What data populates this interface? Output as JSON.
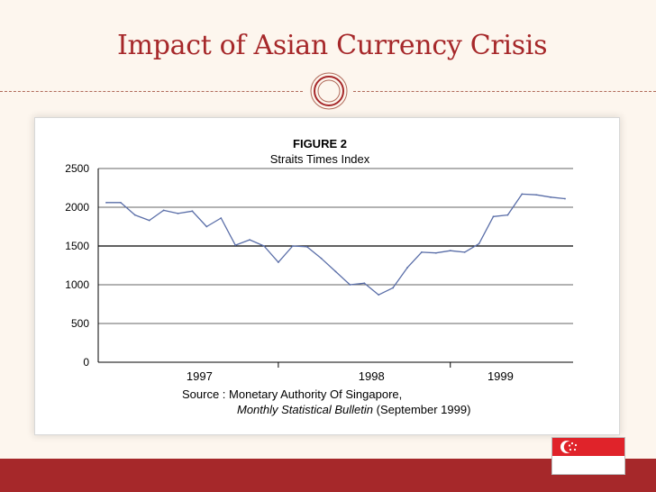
{
  "slide": {
    "title": "Impact of Asian Currency Crisis"
  },
  "figure": {
    "source_prefix": "Source : Monetary Authority Of Singapore,",
    "source_publication": "Monthly Statistical Bulletin",
    "source_suffix": "(September 1999)"
  },
  "colors": {
    "title": "#a6282a",
    "footer": "#a6282a",
    "line": "#5a6ea8",
    "flag_red": "#e0232a"
  },
  "icons": {
    "ornament": "concentric-circle-ornament",
    "flag": "singapore-flag"
  },
  "chart_data": {
    "type": "line",
    "title": "FIGURE 2",
    "subtitle": "Straits Times Index",
    "xlabel": "",
    "ylabel": "",
    "ylim": [
      0,
      2500
    ],
    "yticks": [
      0,
      500,
      1000,
      1500,
      2000,
      2500
    ],
    "x_period_labels": [
      "1997",
      "1998",
      "1999"
    ],
    "x_label_months": [
      6.5,
      18.5,
      27.5
    ],
    "x_year_divider_months": [
      12,
      24
    ],
    "series": [
      {
        "months": [
          0,
          1,
          2,
          3,
          4,
          5,
          6,
          7,
          8,
          9,
          10,
          11,
          12,
          13,
          14,
          15,
          16,
          17,
          18,
          19,
          20,
          21,
          22,
          23,
          24,
          25,
          26,
          27,
          28,
          29,
          30,
          31,
          32
        ],
        "values": [
          2060,
          2060,
          1900,
          1830,
          1960,
          1920,
          1950,
          1750,
          1860,
          1510,
          1580,
          1500,
          1290,
          1500,
          1490,
          1340,
          1170,
          1000,
          1020,
          870,
          960,
          1220,
          1420,
          1410,
          1440,
          1420,
          1530,
          1880,
          1900,
          2170,
          2160,
          2130,
          2110
        ]
      }
    ],
    "grid": true
  }
}
